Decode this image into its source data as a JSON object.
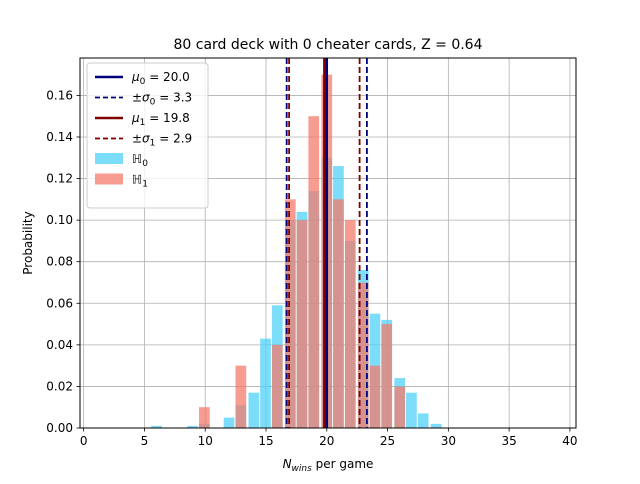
{
  "chart_data": {
    "type": "bar",
    "title": "80 card deck with 0 cheater cards, Z = 0.64",
    "xlabel": "N_wins per game",
    "ylabel": "Probability",
    "xlim": [
      -0.3,
      40.5
    ],
    "ylim": [
      0,
      0.178
    ],
    "x_ticks": [
      0,
      5,
      10,
      15,
      20,
      25,
      30,
      35,
      40
    ],
    "y_ticks": [
      0.0,
      0.02,
      0.04,
      0.06,
      0.08,
      0.1,
      0.12,
      0.14,
      0.16
    ],
    "grid": true,
    "bin_width": 0.88,
    "legend_position": "top-left",
    "colors": {
      "h0_fill": "#4fd1f7",
      "h1_fill": "#f47b6c",
      "mu0_line": "#00007a",
      "mu1_line": "#800000"
    },
    "series": [
      {
        "name": "ℍ0",
        "bin_starts": [
          5.56,
          8.52,
          9.49,
          11.52,
          12.49,
          13.56,
          14.52,
          15.49,
          16.56,
          17.52,
          18.49,
          19.56,
          20.52,
          21.49,
          22.56,
          23.52,
          24.49,
          25.56,
          26.52,
          27.49,
          28.56
        ],
        "values": [
          0.001,
          0.001,
          0.002,
          0.005,
          0.011,
          0.017,
          0.043,
          0.059,
          0.1,
          0.104,
          0.114,
          0.13,
          0.126,
          0.09,
          0.076,
          0.055,
          0.052,
          0.024,
          0.017,
          0.007,
          0.002
        ]
      },
      {
        "name": "ℍ1",
        "bin_starts": [
          9.49,
          12.49,
          15.49,
          16.56,
          17.52,
          18.49,
          19.56,
          20.52,
          21.49,
          22.56,
          23.52,
          24.49,
          25.56
        ],
        "values": [
          0.01,
          0.03,
          0.04,
          0.11,
          0.1,
          0.15,
          0.17,
          0.11,
          0.1,
          0.07,
          0.03,
          0.05,
          0.02
        ]
      }
    ],
    "lines": [
      {
        "name": "μ0 = 20.0",
        "x": 20.0,
        "style": "solid",
        "color": "#00007a"
      },
      {
        "name": "±σ0 = 3.3",
        "x": [
          16.7,
          23.3
        ],
        "style": "dashed",
        "color": "#00007a"
      },
      {
        "name": "μ1 = 19.8",
        "x": 19.8,
        "style": "solid",
        "color": "#800000"
      },
      {
        "name": "±σ1 = 2.9",
        "x": [
          16.9,
          22.7
        ],
        "style": "dashed",
        "color": "#800000"
      }
    ],
    "legend": [
      {
        "label": "μ0 = 20.0",
        "kind": "line",
        "style": "solid",
        "color": "#00007a"
      },
      {
        "label": "±σ0 = 3.3",
        "kind": "line",
        "style": "dashed",
        "color": "#00007a"
      },
      {
        "label": "μ1 = 19.8",
        "kind": "line",
        "style": "solid",
        "color": "#800000"
      },
      {
        "label": "±σ1 = 2.9",
        "kind": "line",
        "style": "dashed",
        "color": "#800000"
      },
      {
        "label": "ℍ0",
        "kind": "patch",
        "color": "#4fd1f7"
      },
      {
        "label": "ℍ1",
        "kind": "patch",
        "color": "#f47b6c"
      }
    ]
  }
}
